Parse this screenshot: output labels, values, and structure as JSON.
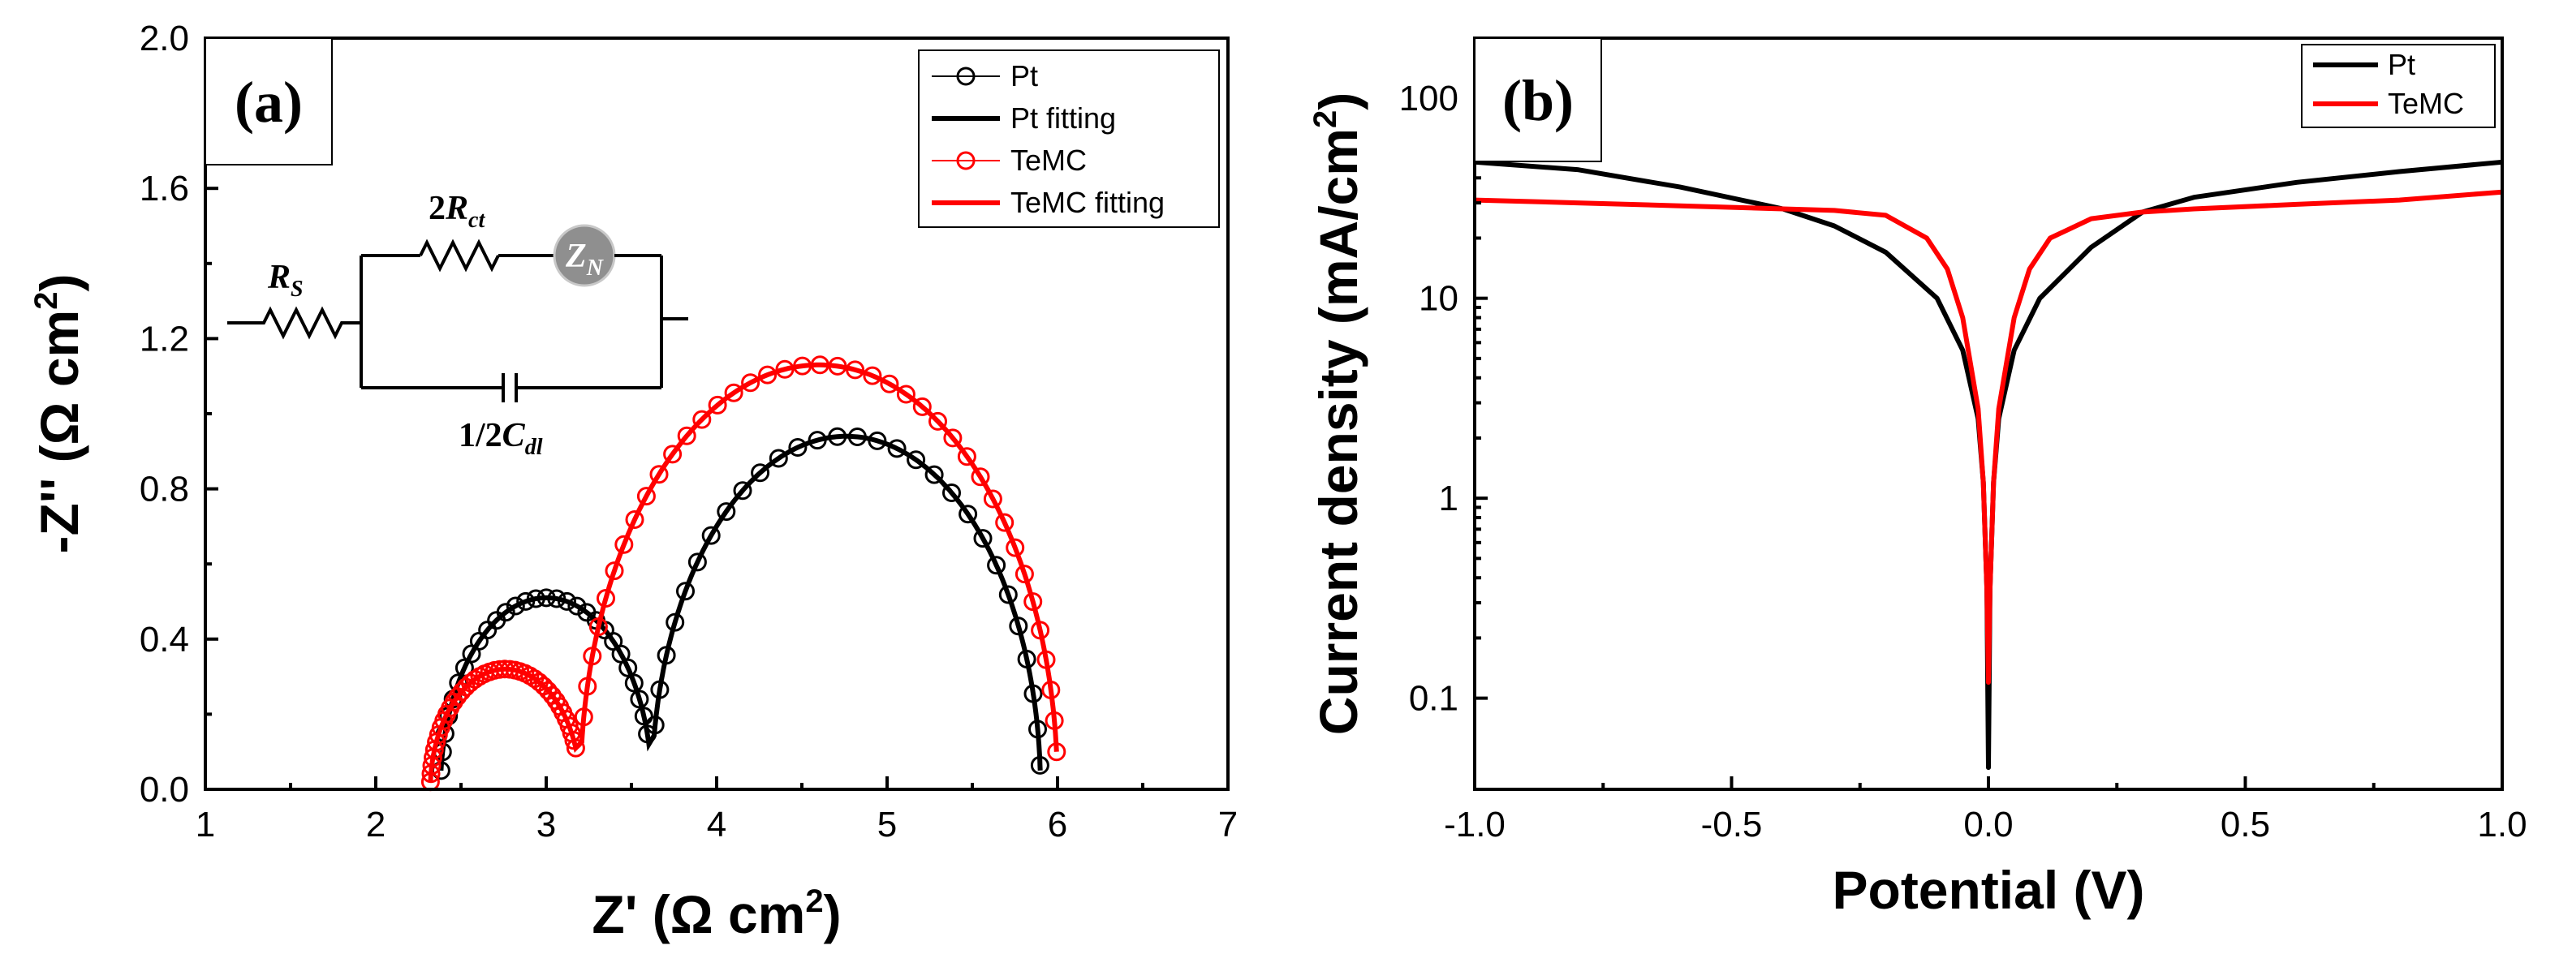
{
  "chart_data": [
    {
      "id": "a",
      "type": "scatter",
      "panel_label": "(a)",
      "xlabel": "Z' (Ω cm",
      "xlabel_sup": "2",
      "xlabel_end": ")",
      "ylabel": "-Z'' (Ω cm",
      "ylabel_sup": "2",
      "ylabel_end": ")",
      "xlim": [
        1,
        7
      ],
      "ylim": [
        0,
        2.0
      ],
      "xticks": [
        "1",
        "2",
        "3",
        "4",
        "5",
        "6",
        "7"
      ],
      "yticks": [
        "0.0",
        "0.4",
        "0.8",
        "1.2",
        "1.6",
        "2.0"
      ],
      "legend": [
        "Pt",
        "Pt fitting",
        "TeMC",
        "TeMC fitting"
      ],
      "circuit_labels": {
        "rs": "R",
        "rs_sub": "S",
        "rct_pre": "2",
        "rct": "R",
        "rct_sub": "ct",
        "zn": "Z",
        "zn_sub": "N",
        "cdl_pre": "1/2",
        "cdl": "C",
        "cdl_sub": "dl"
      },
      "colors": {
        "Pt": "#000000",
        "TeMC": "#ff0000"
      },
      "series": [
        {
          "name": "Pt",
          "arcs": [
            {
              "x0": 2.38,
              "x1": 3.62,
              "peak": 0.51,
              "from": 0.05,
              "to": 0.12
            },
            {
              "x0": 3.62,
              "x1": 5.9,
              "peak": 0.94,
              "from": 0.13,
              "to": 0.05
            }
          ],
          "points": 56
        },
        {
          "name": "TeMC",
          "arcs": [
            {
              "x0": 2.32,
              "x1": 3.2,
              "peak": 0.32,
              "from": 0.02,
              "to": 0.11
            },
            {
              "x0": 3.2,
              "x1": 6.0,
              "peak": 1.13,
              "from": 0.11,
              "to": 0.1
            }
          ],
          "points": 68
        }
      ]
    },
    {
      "id": "b",
      "type": "line",
      "panel_label": "(b)",
      "xlabel": "Potential (V)",
      "ylabel": "Current density (mA/cm",
      "ylabel_sup": "2",
      "ylabel_end": ")",
      "xlim": [
        -1.0,
        1.0
      ],
      "ylim_log": [
        0.035,
        200
      ],
      "yscale": "log",
      "xticks": [
        "-1.0",
        "-0.5",
        "0.0",
        "0.5",
        "1.0"
      ],
      "yticks": [
        "0.1",
        "1",
        "10",
        "100"
      ],
      "legend": [
        "Pt",
        "TeMC"
      ],
      "colors": {
        "Pt": "#000000",
        "TeMC": "#ff0000"
      },
      "series": [
        {
          "name": "Pt",
          "x": [
            -1.0,
            -0.8,
            -0.6,
            -0.4,
            -0.3,
            -0.2,
            -0.1,
            -0.05,
            -0.02,
            -0.01,
            -0.003,
            0.0,
            0.003,
            0.01,
            0.02,
            0.05,
            0.1,
            0.2,
            0.3,
            0.4,
            0.6,
            0.8,
            1.0
          ],
          "y": [
            48,
            44,
            36,
            28,
            23,
            17,
            10,
            5.5,
            2.5,
            1.2,
            0.35,
            0.045,
            0.35,
            1.2,
            2.5,
            5.5,
            10,
            18,
            27,
            32,
            38,
            43,
            48
          ]
        },
        {
          "name": "TeMC",
          "x": [
            -1.0,
            -0.8,
            -0.6,
            -0.4,
            -0.3,
            -0.2,
            -0.12,
            -0.08,
            -0.05,
            -0.02,
            -0.01,
            -0.003,
            0.0,
            0.003,
            0.01,
            0.02,
            0.05,
            0.08,
            0.12,
            0.2,
            0.3,
            0.4,
            0.6,
            0.8,
            1.0
          ],
          "y": [
            31,
            30,
            29,
            28,
            27.5,
            26,
            20,
            14,
            8,
            2.8,
            1.2,
            0.35,
            0.12,
            0.35,
            1.2,
            2.8,
            8,
            14,
            20,
            25,
            27,
            28,
            29.5,
            31,
            34
          ]
        }
      ]
    }
  ]
}
